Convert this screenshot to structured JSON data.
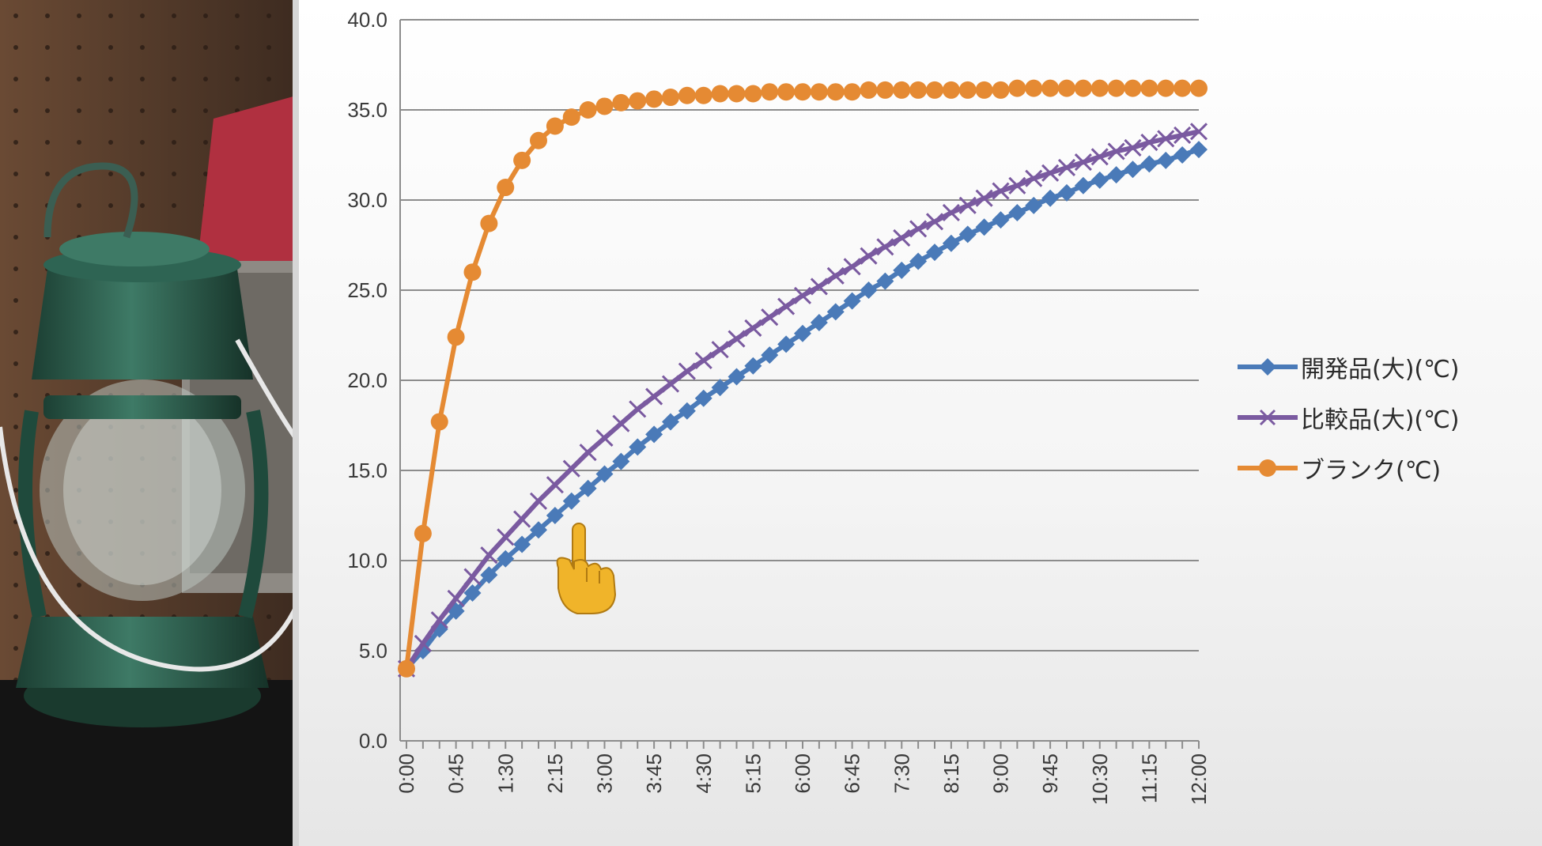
{
  "colors": {
    "dev": "#4a7ab8",
    "cmp": "#7a5aa0",
    "blank": "#e58a33",
    "grid": "#8c8c8c",
    "pointer": "#f0b42a"
  },
  "icons": {
    "pointer": "pointing-hand-icon",
    "lantern": "lantern-photo"
  },
  "chart_data": {
    "type": "line",
    "title": "",
    "xlabel": "",
    "ylabel": "",
    "ylim": [
      0,
      40
    ],
    "yticks": [
      "0.0",
      "5.0",
      "10.0",
      "15.0",
      "20.0",
      "25.0",
      "30.0",
      "35.0",
      "40.0"
    ],
    "xticks": [
      "0:00",
      "0:45",
      "1:30",
      "2:15",
      "3:00",
      "3:45",
      "4:30",
      "5:15",
      "6:00",
      "6:45",
      "7:30",
      "8:15",
      "9:00",
      "9:45",
      "10:30",
      "11:15",
      "12:00"
    ],
    "x_minutes": [
      0,
      15,
      30,
      45,
      60,
      75,
      90,
      105,
      120,
      135,
      150,
      165,
      180,
      195,
      210,
      225,
      240,
      255,
      270,
      285,
      300,
      315,
      330,
      345,
      360,
      375,
      390,
      405,
      420,
      435,
      450,
      465,
      480,
      495,
      510,
      525,
      540,
      555,
      570,
      585,
      600,
      615,
      630,
      645,
      660,
      675,
      690,
      705,
      720
    ],
    "legend_position": "right",
    "series": [
      {
        "name": "開発品(大)(℃)",
        "marker": "diamond",
        "values": [
          4.0,
          5.0,
          6.2,
          7.2,
          8.2,
          9.2,
          10.1,
          10.9,
          11.7,
          12.5,
          13.3,
          14.0,
          14.8,
          15.5,
          16.3,
          17.0,
          17.7,
          18.3,
          19.0,
          19.6,
          20.2,
          20.8,
          21.4,
          22.0,
          22.6,
          23.2,
          23.8,
          24.4,
          25.0,
          25.5,
          26.1,
          26.6,
          27.1,
          27.6,
          28.1,
          28.5,
          28.9,
          29.3,
          29.7,
          30.1,
          30.4,
          30.8,
          31.1,
          31.4,
          31.7,
          32.0,
          32.2,
          32.5,
          32.8
        ]
      },
      {
        "name": "比較品(大)(℃)",
        "marker": "x",
        "values": [
          4.0,
          5.4,
          6.7,
          7.9,
          9.1,
          10.3,
          11.3,
          12.3,
          13.3,
          14.2,
          15.1,
          16.0,
          16.8,
          17.6,
          18.4,
          19.1,
          19.8,
          20.5,
          21.1,
          21.7,
          22.3,
          22.9,
          23.5,
          24.1,
          24.7,
          25.2,
          25.8,
          26.3,
          26.9,
          27.4,
          27.9,
          28.4,
          28.8,
          29.3,
          29.7,
          30.1,
          30.5,
          30.8,
          31.2,
          31.5,
          31.8,
          32.1,
          32.4,
          32.7,
          32.9,
          33.2,
          33.4,
          33.6,
          33.8
        ]
      },
      {
        "name": "ブランク(℃)",
        "marker": "circle",
        "values": [
          4.0,
          11.5,
          17.7,
          22.4,
          26.0,
          28.7,
          30.7,
          32.2,
          33.3,
          34.1,
          34.6,
          35.0,
          35.2,
          35.4,
          35.5,
          35.6,
          35.7,
          35.8,
          35.8,
          35.9,
          35.9,
          35.9,
          36.0,
          36.0,
          36.0,
          36.0,
          36.0,
          36.0,
          36.1,
          36.1,
          36.1,
          36.1,
          36.1,
          36.1,
          36.1,
          36.1,
          36.1,
          36.2,
          36.2,
          36.2,
          36.2,
          36.2,
          36.2,
          36.2,
          36.2,
          36.2,
          36.2,
          36.2,
          36.2
        ]
      }
    ]
  }
}
